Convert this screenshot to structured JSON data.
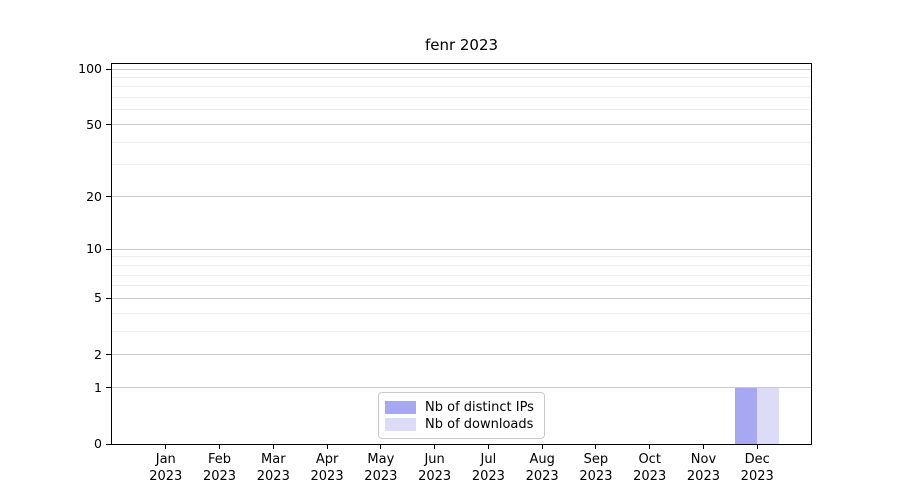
{
  "chart_data": {
    "type": "bar",
    "title": "fenr 2023",
    "xlabel": "",
    "ylabel": "",
    "ylim": [
      0,
      100
    ],
    "y_scale": "log1p",
    "grid": true,
    "legend_position": "bottom-center",
    "y_major_ticks": [
      0,
      1,
      2,
      5,
      10,
      20,
      50,
      100
    ],
    "y_minor_ticks": [
      3,
      4,
      6,
      7,
      8,
      9,
      30,
      40,
      60,
      70,
      80,
      90
    ],
    "categories": [
      {
        "month": "Jan",
        "year": "2023"
      },
      {
        "month": "Feb",
        "year": "2023"
      },
      {
        "month": "Mar",
        "year": "2023"
      },
      {
        "month": "Apr",
        "year": "2023"
      },
      {
        "month": "May",
        "year": "2023"
      },
      {
        "month": "Jun",
        "year": "2023"
      },
      {
        "month": "Jul",
        "year": "2023"
      },
      {
        "month": "Aug",
        "year": "2023"
      },
      {
        "month": "Sep",
        "year": "2023"
      },
      {
        "month": "Oct",
        "year": "2023"
      },
      {
        "month": "Nov",
        "year": "2023"
      },
      {
        "month": "Dec",
        "year": "2023"
      }
    ],
    "series": [
      {
        "name": "Nb of distinct IPs",
        "color": "#a8a8f2",
        "values": [
          0,
          0,
          0,
          0,
          0,
          0,
          0,
          0,
          0,
          0,
          0,
          1
        ]
      },
      {
        "name": "Nb of downloads",
        "color": "#dcdcf8",
        "values": [
          0,
          0,
          0,
          0,
          0,
          0,
          0,
          0,
          0,
          0,
          0,
          1
        ]
      }
    ]
  }
}
